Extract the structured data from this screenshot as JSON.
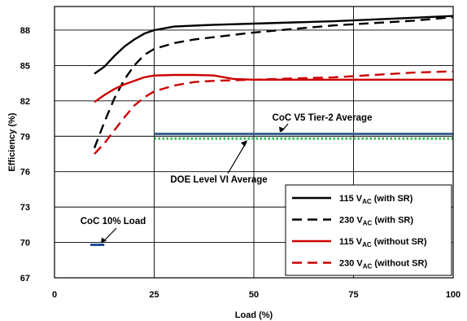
{
  "chart_data": {
    "type": "line",
    "title": "",
    "xlabel": "Load (%)",
    "ylabel": "Efficiency (%)",
    "xlim": [
      0,
      100
    ],
    "ylim": [
      67,
      90
    ],
    "xticks": [
      0,
      25,
      50,
      75,
      100
    ],
    "yticks": [
      67,
      70,
      73,
      76,
      79,
      82,
      85,
      88
    ],
    "grid": "vertical at 25, 50, 75; horizontal at every y tick",
    "legend_position": "bottom-right",
    "series": [
      {
        "name": "115 V",
        "name_sub": "AC",
        "name_suffix": " (with SR)",
        "color": "#000000",
        "dash": "solid",
        "x": [
          10,
          12.5,
          15,
          17.5,
          20,
          22.5,
          25,
          30,
          40,
          50,
          60,
          70,
          80,
          90,
          100
        ],
        "y": [
          84.3,
          84.9,
          85.8,
          86.6,
          87.2,
          87.7,
          88.0,
          88.3,
          88.45,
          88.55,
          88.65,
          88.75,
          88.9,
          89.05,
          89.2
        ]
      },
      {
        "name": "230 V",
        "name_sub": "AC",
        "name_suffix": " (with SR)",
        "color": "#000000",
        "dash": "dash",
        "x": [
          10,
          12.5,
          15,
          17.5,
          20,
          22.5,
          25,
          30,
          35,
          40,
          50,
          60,
          70,
          80,
          90,
          100
        ],
        "y": [
          78.0,
          80.2,
          82.2,
          83.8,
          85.0,
          85.9,
          86.4,
          86.9,
          87.2,
          87.4,
          87.8,
          88.1,
          88.4,
          88.6,
          88.8,
          89.1
        ]
      },
      {
        "name": "115 V",
        "name_sub": "AC",
        "name_suffix": " (without SR)",
        "color": "#cc0000",
        "dash": "solid",
        "x": [
          10,
          12.5,
          15,
          17.5,
          20,
          22.5,
          25,
          30,
          35,
          40,
          45,
          50,
          60,
          70,
          80,
          90,
          100
        ],
        "y": [
          81.9,
          82.5,
          83.0,
          83.4,
          83.7,
          84.0,
          84.15,
          84.2,
          84.2,
          84.15,
          83.85,
          83.8,
          83.8,
          83.8,
          83.8,
          83.8,
          83.8
        ]
      },
      {
        "name": "230 V",
        "name_sub": "AC",
        "name_suffix": " (without SR)",
        "color": "#cc0000",
        "dash": "dash",
        "x": [
          10,
          12.5,
          15,
          17.5,
          20,
          22.5,
          25,
          30,
          35,
          40,
          50,
          60,
          70,
          80,
          90,
          100
        ],
        "y": [
          77.5,
          78.4,
          79.5,
          80.6,
          81.6,
          82.3,
          82.8,
          83.3,
          83.6,
          83.7,
          83.8,
          83.9,
          84.0,
          84.2,
          84.4,
          84.5
        ]
      }
    ],
    "reference_lines": [
      {
        "label": "CoC V5 Tier-2 Average",
        "y": 79.2,
        "x_from": 25,
        "x_to": 100,
        "color": "#3a5f8f",
        "dash": "solid"
      },
      {
        "label": "DOE Level VI Average",
        "y": 78.8,
        "x_from": 25,
        "x_to": 100,
        "color": "#33bb55",
        "dash": "dot"
      },
      {
        "label": "CoC 10% Load",
        "y": 69.8,
        "x_from": 9,
        "x_to": 12.5,
        "color": "#1f4e9a",
        "dash": "solid"
      }
    ]
  }
}
